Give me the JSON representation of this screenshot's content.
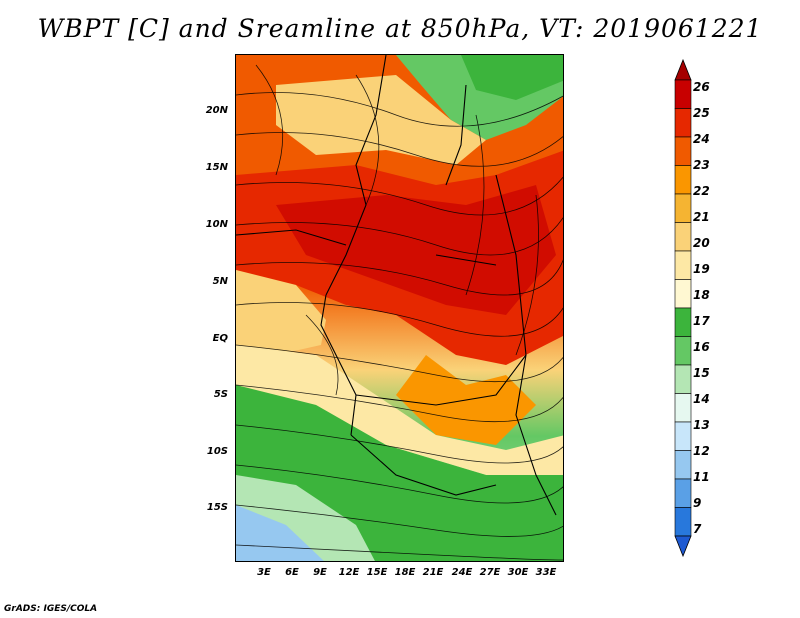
{
  "title": "WBPT [C] and Sreamline at 850hPa, VT: 2019061221",
  "footer": "GrADS: IGES/COLA",
  "map": {
    "lat_labels": [
      "20N",
      "15N",
      "10N",
      "5N",
      "EQ",
      "5S",
      "10S",
      "15S"
    ],
    "lon_labels": [
      "3E",
      "6E",
      "9E",
      "12E",
      "15E",
      "18E",
      "21E",
      "24E",
      "27E",
      "30E",
      "33E"
    ]
  },
  "colorbar": {
    "labels": [
      "26",
      "25",
      "24",
      "23",
      "22",
      "21",
      "20",
      "19",
      "18",
      "17",
      "16",
      "15",
      "14",
      "13",
      "12",
      "11",
      "9",
      "7"
    ],
    "colors": [
      "#a50000",
      "#c80000",
      "#e62800",
      "#f05a00",
      "#fa9600",
      "#f5b432",
      "#fad278",
      "#fde8a5",
      "#fff8d2",
      "#3cb43c",
      "#64c864",
      "#b4e6b4",
      "#e6f8f0",
      "#c8e6fa",
      "#96c8f0",
      "#5aa0e6",
      "#2878dc",
      "#1e5ad2"
    ]
  }
}
